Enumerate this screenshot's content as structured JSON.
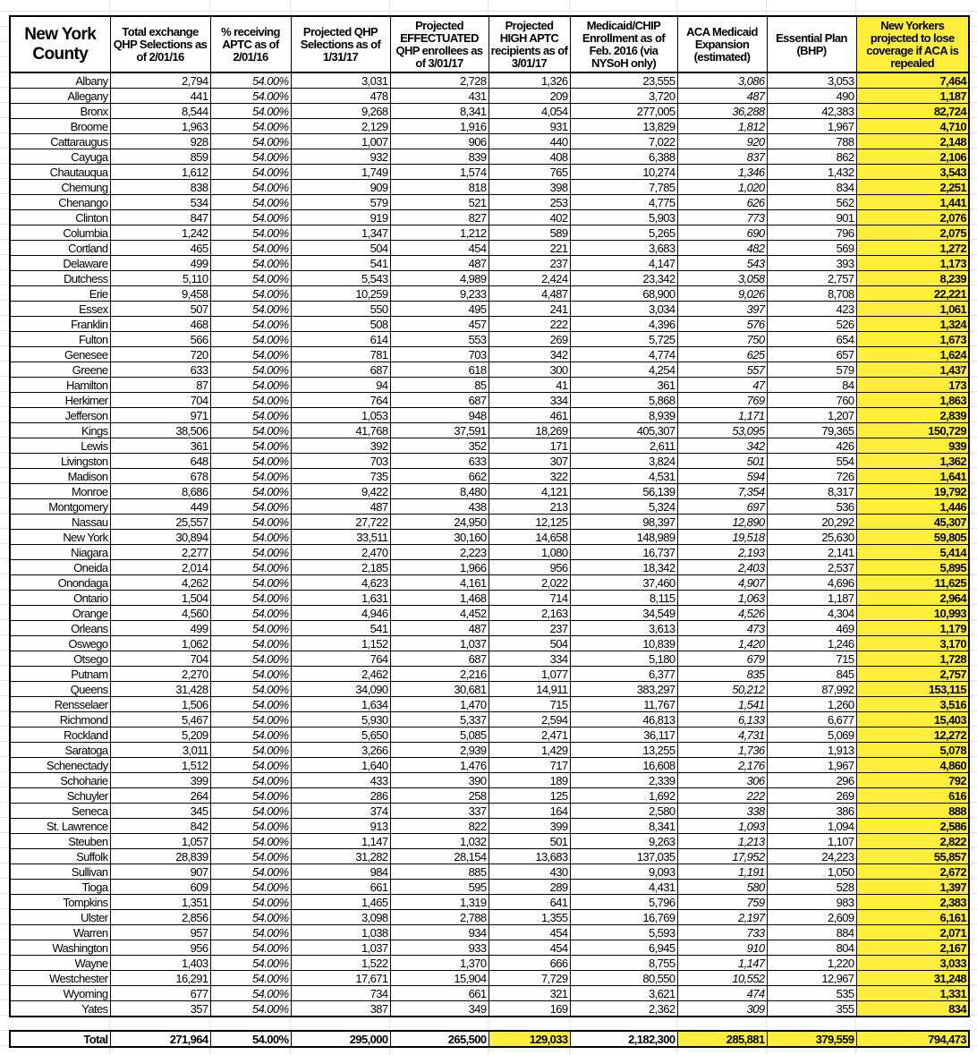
{
  "headers": {
    "county": "New York County",
    "total_exchange": "Total exchange QHP Selections as of 2/01/16",
    "pct_aptc": "% receiving APTC as of 2/01/16",
    "projected_qhp": "Projected QHP Selections as of 1/31/17",
    "effectuated": "Projected EFFECTUATED QHP enrollees as of 3/01/17",
    "high_aptc": "Projected HIGH APTC recipients as of 3/01/17",
    "medicaid": "Medicaid/CHIP Enrollment as of Feb. 2016 (via NYSoH only)",
    "aca_expansion": "ACA Medicaid Expansion (estimated)",
    "essential_plan": "Essential Plan (BHP)",
    "lose_coverage": "New Yorkers projected to lose coverage if ACA is repealed"
  },
  "highlight_color": "#ffef3a",
  "rows": [
    [
      "Albany",
      "2,794",
      "54.00%",
      "3,031",
      "2,728",
      "1,326",
      "23,555",
      "3,086",
      "3,053",
      "7,464"
    ],
    [
      "Allegany",
      "441",
      "54.00%",
      "478",
      "431",
      "209",
      "3,720",
      "487",
      "490",
      "1,187"
    ],
    [
      "Bronx",
      "8,544",
      "54.00%",
      "9,268",
      "8,341",
      "4,054",
      "277,005",
      "36,288",
      "42,383",
      "82,724"
    ],
    [
      "Broome",
      "1,963",
      "54.00%",
      "2,129",
      "1,916",
      "931",
      "13,829",
      "1,812",
      "1,967",
      "4,710"
    ],
    [
      "Cattaraugus",
      "928",
      "54.00%",
      "1,007",
      "906",
      "440",
      "7,022",
      "920",
      "788",
      "2,148"
    ],
    [
      "Cayuga",
      "859",
      "54.00%",
      "932",
      "839",
      "408",
      "6,388",
      "837",
      "862",
      "2,106"
    ],
    [
      "Chautauqua",
      "1,612",
      "54.00%",
      "1,749",
      "1,574",
      "765",
      "10,274",
      "1,346",
      "1,432",
      "3,543"
    ],
    [
      "Chemung",
      "838",
      "54.00%",
      "909",
      "818",
      "398",
      "7,785",
      "1,020",
      "834",
      "2,251"
    ],
    [
      "Chenango",
      "534",
      "54.00%",
      "579",
      "521",
      "253",
      "4,775",
      "626",
      "562",
      "1,441"
    ],
    [
      "Clinton",
      "847",
      "54.00%",
      "919",
      "827",
      "402",
      "5,903",
      "773",
      "901",
      "2,076"
    ],
    [
      "Columbia",
      "1,242",
      "54.00%",
      "1,347",
      "1,212",
      "589",
      "5,265",
      "690",
      "796",
      "2,075"
    ],
    [
      "Cortland",
      "465",
      "54.00%",
      "504",
      "454",
      "221",
      "3,683",
      "482",
      "569",
      "1,272"
    ],
    [
      "Delaware",
      "499",
      "54.00%",
      "541",
      "487",
      "237",
      "4,147",
      "543",
      "393",
      "1,173"
    ],
    [
      "Dutchess",
      "5,110",
      "54.00%",
      "5,543",
      "4,989",
      "2,424",
      "23,342",
      "3,058",
      "2,757",
      "8,239"
    ],
    [
      "Erie",
      "9,458",
      "54.00%",
      "10,259",
      "9,233",
      "4,487",
      "68,900",
      "9,026",
      "8,708",
      "22,221"
    ],
    [
      "Essex",
      "507",
      "54.00%",
      "550",
      "495",
      "241",
      "3,034",
      "397",
      "423",
      "1,061"
    ],
    [
      "Franklin",
      "468",
      "54.00%",
      "508",
      "457",
      "222",
      "4,396",
      "576",
      "526",
      "1,324"
    ],
    [
      "Fulton",
      "566",
      "54.00%",
      "614",
      "553",
      "269",
      "5,725",
      "750",
      "654",
      "1,673"
    ],
    [
      "Genesee",
      "720",
      "54.00%",
      "781",
      "703",
      "342",
      "4,774",
      "625",
      "657",
      "1,624"
    ],
    [
      "Greene",
      "633",
      "54.00%",
      "687",
      "618",
      "300",
      "4,254",
      "557",
      "579",
      "1,437"
    ],
    [
      "Hamilton",
      "87",
      "54.00%",
      "94",
      "85",
      "41",
      "361",
      "47",
      "84",
      "173"
    ],
    [
      "Herkimer",
      "704",
      "54.00%",
      "764",
      "687",
      "334",
      "5,868",
      "769",
      "760",
      "1,863"
    ],
    [
      "Jefferson",
      "971",
      "54.00%",
      "1,053",
      "948",
      "461",
      "8,939",
      "1,171",
      "1,207",
      "2,839"
    ],
    [
      "Kings",
      "38,506",
      "54.00%",
      "41,768",
      "37,591",
      "18,269",
      "405,307",
      "53,095",
      "79,365",
      "150,729"
    ],
    [
      "Lewis",
      "361",
      "54.00%",
      "392",
      "352",
      "171",
      "2,611",
      "342",
      "426",
      "939"
    ],
    [
      "Livingston",
      "648",
      "54.00%",
      "703",
      "633",
      "307",
      "3,824",
      "501",
      "554",
      "1,362"
    ],
    [
      "Madison",
      "678",
      "54.00%",
      "735",
      "662",
      "322",
      "4,531",
      "594",
      "726",
      "1,641"
    ],
    [
      "Monroe",
      "8,686",
      "54.00%",
      "9,422",
      "8,480",
      "4,121",
      "56,139",
      "7,354",
      "8,317",
      "19,792"
    ],
    [
      "Montgomery",
      "449",
      "54.00%",
      "487",
      "438",
      "213",
      "5,324",
      "697",
      "536",
      "1,446"
    ],
    [
      "Nassau",
      "25,557",
      "54.00%",
      "27,722",
      "24,950",
      "12,125",
      "98,397",
      "12,890",
      "20,292",
      "45,307"
    ],
    [
      "New York",
      "30,894",
      "54.00%",
      "33,511",
      "30,160",
      "14,658",
      "148,989",
      "19,518",
      "25,630",
      "59,805"
    ],
    [
      "Niagara",
      "2,277",
      "54.00%",
      "2,470",
      "2,223",
      "1,080",
      "16,737",
      "2,193",
      "2,141",
      "5,414"
    ],
    [
      "Oneida",
      "2,014",
      "54.00%",
      "2,185",
      "1,966",
      "956",
      "18,342",
      "2,403",
      "2,537",
      "5,895"
    ],
    [
      "Onondaga",
      "4,262",
      "54.00%",
      "4,623",
      "4,161",
      "2,022",
      "37,460",
      "4,907",
      "4,696",
      "11,625"
    ],
    [
      "Ontario",
      "1,504",
      "54.00%",
      "1,631",
      "1,468",
      "714",
      "8,115",
      "1,063",
      "1,187",
      "2,964"
    ],
    [
      "Orange",
      "4,560",
      "54.00%",
      "4,946",
      "4,452",
      "2,163",
      "34,549",
      "4,526",
      "4,304",
      "10,993"
    ],
    [
      "Orleans",
      "499",
      "54.00%",
      "541",
      "487",
      "237",
      "3,613",
      "473",
      "469",
      "1,179"
    ],
    [
      "Oswego",
      "1,062",
      "54.00%",
      "1,152",
      "1,037",
      "504",
      "10,839",
      "1,420",
      "1,246",
      "3,170"
    ],
    [
      "Otsego",
      "704",
      "54.00%",
      "764",
      "687",
      "334",
      "5,180",
      "679",
      "715",
      "1,728"
    ],
    [
      "Putnam",
      "2,270",
      "54.00%",
      "2,462",
      "2,216",
      "1,077",
      "6,377",
      "835",
      "845",
      "2,757"
    ],
    [
      "Queens",
      "31,428",
      "54.00%",
      "34,090",
      "30,681",
      "14,911",
      "383,297",
      "50,212",
      "87,992",
      "153,115"
    ],
    [
      "Rensselaer",
      "1,506",
      "54.00%",
      "1,634",
      "1,470",
      "715",
      "11,767",
      "1,541",
      "1,260",
      "3,516"
    ],
    [
      "Richmond",
      "5,467",
      "54.00%",
      "5,930",
      "5,337",
      "2,594",
      "46,813",
      "6,133",
      "6,677",
      "15,403"
    ],
    [
      "Rockland",
      "5,209",
      "54.00%",
      "5,650",
      "5,085",
      "2,471",
      "36,117",
      "4,731",
      "5,069",
      "12,272"
    ],
    [
      "Saratoga",
      "3,011",
      "54.00%",
      "3,266",
      "2,939",
      "1,429",
      "13,255",
      "1,736",
      "1,913",
      "5,078"
    ],
    [
      "Schenectady",
      "1,512",
      "54.00%",
      "1,640",
      "1,476",
      "717",
      "16,608",
      "2,176",
      "1,967",
      "4,860"
    ],
    [
      "Schoharie",
      "399",
      "54.00%",
      "433",
      "390",
      "189",
      "2,339",
      "306",
      "296",
      "792"
    ],
    [
      "Schuyler",
      "264",
      "54.00%",
      "286",
      "258",
      "125",
      "1,692",
      "222",
      "269",
      "616"
    ],
    [
      "Seneca",
      "345",
      "54.00%",
      "374",
      "337",
      "164",
      "2,580",
      "338",
      "386",
      "888"
    ],
    [
      "St. Lawrence",
      "842",
      "54.00%",
      "913",
      "822",
      "399",
      "8,341",
      "1,093",
      "1,094",
      "2,586"
    ],
    [
      "Steuben",
      "1,057",
      "54.00%",
      "1,147",
      "1,032",
      "501",
      "9,263",
      "1,213",
      "1,107",
      "2,822"
    ],
    [
      "Suffolk",
      "28,839",
      "54.00%",
      "31,282",
      "28,154",
      "13,683",
      "137,035",
      "17,952",
      "24,223",
      "55,857"
    ],
    [
      "Sullivan",
      "907",
      "54.00%",
      "984",
      "885",
      "430",
      "9,093",
      "1,191",
      "1,050",
      "2,672"
    ],
    [
      "Tioga",
      "609",
      "54.00%",
      "661",
      "595",
      "289",
      "4,431",
      "580",
      "528",
      "1,397"
    ],
    [
      "Tompkins",
      "1,351",
      "54.00%",
      "1,465",
      "1,319",
      "641",
      "5,796",
      "759",
      "983",
      "2,383"
    ],
    [
      "Ulster",
      "2,856",
      "54.00%",
      "3,098",
      "2,788",
      "1,355",
      "16,769",
      "2,197",
      "2,609",
      "6,161"
    ],
    [
      "Warren",
      "957",
      "54.00%",
      "1,038",
      "934",
      "454",
      "5,593",
      "733",
      "884",
      "2,071"
    ],
    [
      "Washington",
      "956",
      "54.00%",
      "1,037",
      "933",
      "454",
      "6,945",
      "910",
      "804",
      "2,167"
    ],
    [
      "Wayne",
      "1,403",
      "54.00%",
      "1,522",
      "1,370",
      "666",
      "8,755",
      "1,147",
      "1,220",
      "3,033"
    ],
    [
      "Westchester",
      "16,291",
      "54.00%",
      "17,671",
      "15,904",
      "7,729",
      "80,550",
      "10,552",
      "12,967",
      "31,248"
    ],
    [
      "Wyoming",
      "677",
      "54.00%",
      "734",
      "661",
      "321",
      "3,621",
      "474",
      "535",
      "1,331"
    ],
    [
      "Yates",
      "357",
      "54.00%",
      "387",
      "349",
      "169",
      "2,362",
      "309",
      "355",
      "834"
    ]
  ],
  "total": [
    "Total",
    "271,964",
    "54.00%",
    "295,000",
    "265,500",
    "129,033",
    "2,182,300",
    "285,881",
    "379,559",
    "794,473"
  ]
}
